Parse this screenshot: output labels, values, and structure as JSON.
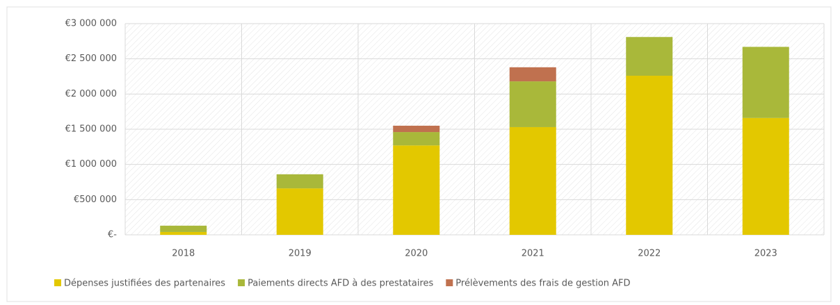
{
  "chart_data": {
    "type": "stacked_bar",
    "categories": [
      "2018",
      "2019",
      "2020",
      "2021",
      "2022",
      "2023"
    ],
    "series": [
      {
        "name": "Dépenses justifiées des partenaires",
        "color": "#e3c800",
        "values": [
          40000,
          660000,
          1270000,
          1530000,
          2260000,
          1660000
        ]
      },
      {
        "name": "Paiements directs AFD à des prestataires",
        "color": "#a9b83a",
        "values": [
          90000,
          200000,
          190000,
          650000,
          550000,
          1010000
        ]
      },
      {
        "name": "Prélèvements des frais de gestion AFD",
        "color": "#c0714f",
        "values": [
          0,
          0,
          90000,
          200000,
          0,
          0
        ]
      }
    ],
    "ylim": [
      0,
      3000000
    ],
    "yticks": [
      {
        "value": 0,
        "label": "€-"
      },
      {
        "value": 500000,
        "label": "€500 000"
      },
      {
        "value": 1000000,
        "label": "€1 000 000"
      },
      {
        "value": 1500000,
        "label": "€1 500 000"
      },
      {
        "value": 2000000,
        "label": "€2 000 000"
      },
      {
        "value": 2500000,
        "label": "€2 500 000"
      },
      {
        "value": 3000000,
        "label": "€3 000 000"
      }
    ],
    "grid": true,
    "legend": "bottom"
  }
}
